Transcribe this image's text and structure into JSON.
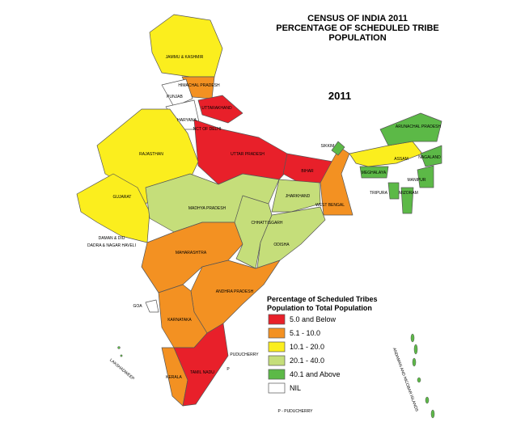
{
  "header": {
    "title_lines": [
      "CENSUS OF INDIA 2011",
      "PERCENTAGE OF SCHEDULED TRIBE",
      "POPULATION"
    ],
    "year": "2011"
  },
  "legend": {
    "title_lines": [
      "Percentage of Scheduled Tribes",
      "Population  to Total Population"
    ],
    "items": [
      {
        "label": "5.0 and Below",
        "color": "#e8202a"
      },
      {
        "label": "5.1 - 10.0",
        "color": "#f39122"
      },
      {
        "label": "10.1 - 20.0",
        "color": "#fbee1e"
      },
      {
        "label": "20.1 - 40.0",
        "color": "#c5de7a"
      },
      {
        "label": "40.1 and Above",
        "color": "#5cb947"
      },
      {
        "label": "NIL",
        "color": "#ffffff"
      }
    ]
  },
  "regions": [
    "JAMMU & KASHMIR",
    "HIMACHAL PRADESH",
    "PUNJAB",
    "UTTARAKHAND",
    "HARYANA",
    "NCT OF DELHI",
    "UTTAR PRADESH",
    "RAJASTHAN",
    "GUJARAT",
    "BIHAR",
    "SIKKIM",
    "ARUNACHAL PRADESH",
    "ASSAM",
    "NAGALAND",
    "MEGHALAYA",
    "MANIPUR",
    "TRIPURA",
    "MIZORAM",
    "JHARKHAND",
    "WEST BENGAL",
    "MADHYA PRADESH",
    "CHHATTISGARH",
    "ODISHA",
    "MAHARASHTRA",
    "DAMAN & DIU",
    "DADRA & NAGAR HAVELI",
    "ANDHRA PRADESH",
    "GOA",
    "KARNATAKA",
    "PUDUCHERRY",
    "KERALA",
    "TAMIL NADU",
    "P",
    "LAKSHADWEEP",
    "ANDAMAN AND NICOBAR ISLANDS"
  ],
  "footnote": "P - PUDUCHERRY"
}
